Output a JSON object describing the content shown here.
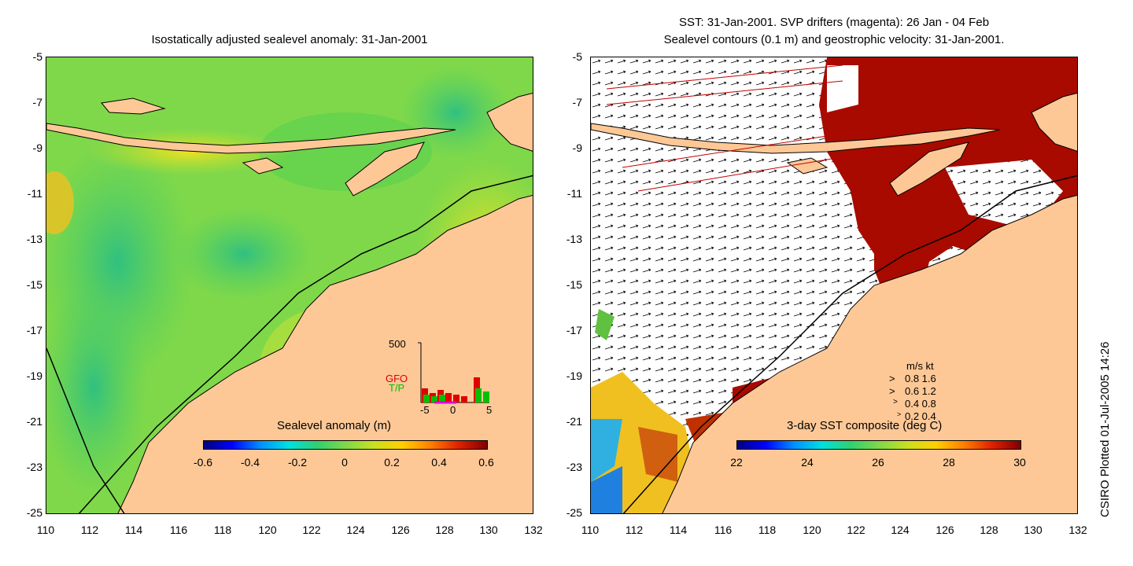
{
  "left_panel": {
    "title": "Isostatically adjusted sealevel anomaly: 31-Jan-2001",
    "colorbar_title": "Sealevel anomaly (m)",
    "colorbar_ticks": [
      "-0.6",
      "-0.4",
      "-0.2",
      "0",
      "0.2",
      "0.4",
      "0.6"
    ],
    "inset": {
      "y_label": "500",
      "series_labels": [
        "GFO",
        "T/P"
      ],
      "series_colors": [
        "#e00000",
        "#00c000"
      ],
      "x_ticks": [
        "-5",
        "0",
        "5"
      ]
    }
  },
  "right_panel": {
    "title_line1": "SST: 31-Jan-2001. SVP drifters (magenta): 26 Jan - 04 Feb",
    "title_line2": "Sealevel contours (0.1 m) and geostrophic velocity: 31-Jan-2001.",
    "colorbar_title": "3-day SST composite (deg C)",
    "colorbar_ticks": [
      "22",
      "24",
      "26",
      "28",
      "30"
    ],
    "velocity_legend": {
      "header": "m/s  kt",
      "rows": [
        "0.8  1.6",
        "0.6  1.2",
        "0.4  0.8",
        "0.2  0.4"
      ]
    }
  },
  "axes": {
    "y_ticks": [
      "-5",
      "-7",
      "-9",
      "-11",
      "-13",
      "-15",
      "-17",
      "-19",
      "-21",
      "-23",
      "-25"
    ],
    "x_ticks": [
      "110",
      "112",
      "114",
      "116",
      "118",
      "120",
      "122",
      "124",
      "126",
      "128",
      "130",
      "132"
    ]
  },
  "side_label": "CSIRO Plotted 01-Jul-2005 14:26",
  "colors": {
    "land": "#fdc896",
    "ocean_green": "#7fd84a",
    "sst_red": "#a80a00"
  }
}
